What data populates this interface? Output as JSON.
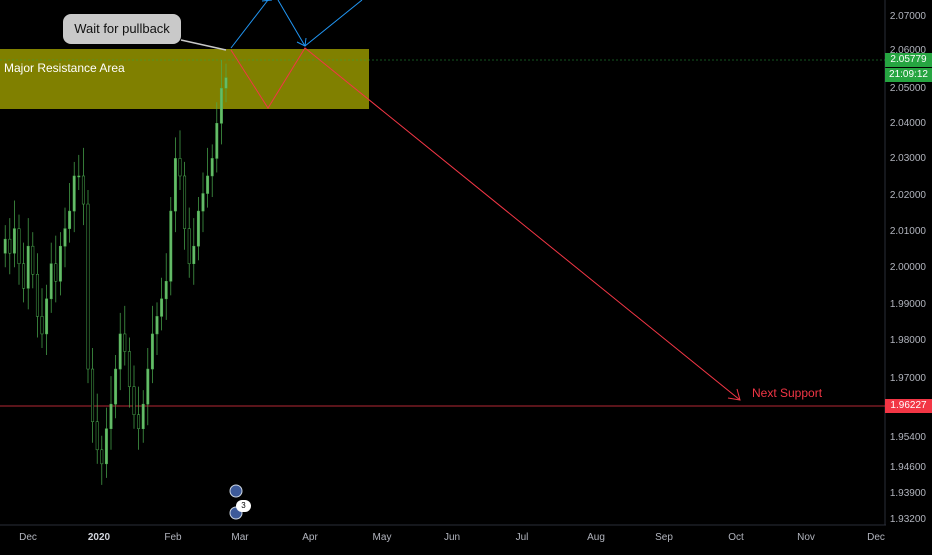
{
  "price_axis": {
    "ticks": [
      "2.07000",
      "2.06000",
      "2.05000",
      "2.04000",
      "2.03000",
      "2.02000",
      "2.01000",
      "2.00000",
      "1.99000",
      "1.98000",
      "1.97000",
      "1.95400",
      "1.94600",
      "1.93900",
      "1.93200"
    ],
    "current_price": "2.05779",
    "countdown": "21:09:12",
    "support_price": "1.96227"
  },
  "time_axis": {
    "ticks": [
      "Dec",
      "2020",
      "Feb",
      "Mar",
      "Apr",
      "May",
      "Jun",
      "Jul",
      "Aug",
      "Sep",
      "Oct",
      "Nov",
      "Dec"
    ]
  },
  "annotations": {
    "callout_text": "Wait for pullback",
    "resistance_label": "Major Resistance Area",
    "support_label": "Next Support"
  },
  "events": {
    "count": "3"
  },
  "colors": {
    "background": "#000000",
    "up_candle": "#4caf50",
    "resistance_zone": "#808000",
    "support_line": "#f23645",
    "projection_blue": "#2196f3",
    "current_tag": "#26a541",
    "support_tag": "#f23645"
  },
  "chart_data": {
    "type": "candlestick",
    "ylim": [
      1.932,
      2.075
    ],
    "candles_close_estimates": [
      2.012,
      2.008,
      2.015,
      2.005,
      1.998,
      2.01,
      2.002,
      1.99,
      1.985,
      1.995,
      2.005,
      2.0,
      2.01,
      2.015,
      2.02,
      2.03,
      2.03,
      2.022,
      1.975,
      1.96,
      1.952,
      1.948,
      1.958,
      1.965,
      1.975,
      1.985,
      1.98,
      1.97,
      1.962,
      1.958,
      1.965,
      1.975,
      1.985,
      1.99,
      1.995,
      2.0,
      2.02,
      2.035,
      2.03,
      2.015,
      2.005,
      2.01,
      2.02,
      2.025,
      2.03,
      2.035,
      2.045,
      2.055,
      2.058
    ],
    "resistance_zone": [
      2.045,
      2.061
    ],
    "support_level": 1.96227,
    "current_price": 2.05779
  }
}
